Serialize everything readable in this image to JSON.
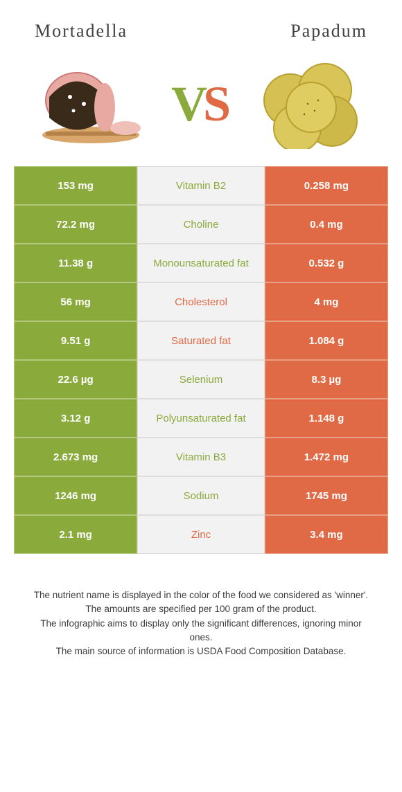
{
  "foods": {
    "left": {
      "name": "Mortadella"
    },
    "right": {
      "name": "Papadum"
    }
  },
  "vs": {
    "v": "V",
    "s": "S"
  },
  "colors": {
    "green": "#8aaa3b",
    "orange": "#e06a45",
    "mid_bg": "#f2f2f2",
    "border": "#dddddd"
  },
  "rows": [
    {
      "label": "Vitamin B2",
      "left": "153 mg",
      "right": "0.258 mg",
      "winner": "left"
    },
    {
      "label": "Choline",
      "left": "72.2 mg",
      "right": "0.4 mg",
      "winner": "left"
    },
    {
      "label": "Monounsaturated fat",
      "left": "11.38 g",
      "right": "0.532 g",
      "winner": "left"
    },
    {
      "label": "Cholesterol",
      "left": "56 mg",
      "right": "4 mg",
      "winner": "right"
    },
    {
      "label": "Saturated fat",
      "left": "9.51 g",
      "right": "1.084 g",
      "winner": "right"
    },
    {
      "label": "Selenium",
      "left": "22.6 µg",
      "right": "8.3 µg",
      "winner": "left"
    },
    {
      "label": "Polyunsaturated fat",
      "left": "3.12 g",
      "right": "1.148 g",
      "winner": "left"
    },
    {
      "label": "Vitamin B3",
      "left": "2.673 mg",
      "right": "1.472 mg",
      "winner": "left"
    },
    {
      "label": "Sodium",
      "left": "1246 mg",
      "right": "1745 mg",
      "winner": "left"
    },
    {
      "label": "Zinc",
      "left": "2.1 mg",
      "right": "3.4 mg",
      "winner": "right"
    }
  ],
  "footer": [
    "The nutrient name is displayed in the color of the food we considered as 'winner'.",
    "The amounts are specified per 100 gram of the product.",
    "The infographic aims to display only the significant differences, ignoring minor ones.",
    "The main source of information is USDA Food Composition Database."
  ]
}
